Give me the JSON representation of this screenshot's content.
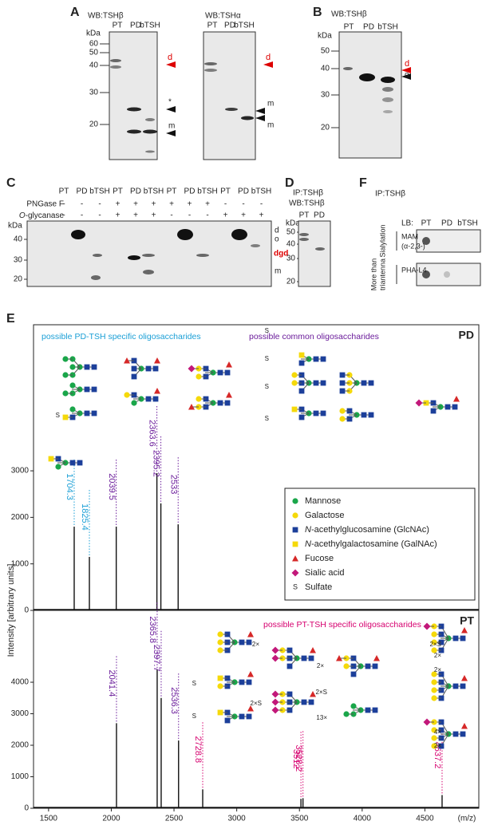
{
  "A": {
    "label": "A",
    "blots": [
      {
        "title": "WB:TSHβ",
        "lanes": [
          "PT",
          "PD",
          "bTSH"
        ],
        "unit": "kDa",
        "markers": [
          60,
          50,
          40,
          30,
          20
        ],
        "annotations": [
          "d",
          "*",
          "m"
        ]
      },
      {
        "title": "WB:TSHα",
        "lanes": [
          "PT",
          "PD",
          "bTSH"
        ],
        "annotations": [
          "d",
          "m",
          "m"
        ]
      }
    ]
  },
  "B": {
    "label": "B",
    "title": "WB:TSHβ",
    "lanes": [
      "PT",
      "PD",
      "bTSH"
    ],
    "unit": "kDa",
    "markers": [
      50,
      40,
      30,
      20
    ],
    "annotations": [
      "d",
      "o"
    ]
  },
  "C": {
    "label": "C",
    "lanes": [
      "PT",
      "PD",
      "bTSH",
      "PT",
      "PD",
      "bTSH",
      "PT",
      "PD",
      "bTSH",
      "PT",
      "PD",
      "bTSH"
    ],
    "treatments": [
      {
        "name": "PNGase F",
        "marks": [
          "-",
          "-",
          "-",
          "+",
          "+",
          "+",
          "+",
          "+",
          "+",
          "-",
          "-",
          "-"
        ]
      },
      {
        "prefix": "O",
        "name": "-glycanase",
        "marks": [
          "-",
          "-",
          "-",
          "+",
          "+",
          "+",
          "-",
          "-",
          "-",
          "+",
          "+",
          "+"
        ]
      }
    ],
    "unit": "kDa",
    "markers": [
      40,
      30,
      20
    ],
    "annotations": [
      "d",
      "o",
      "dgd",
      "m"
    ]
  },
  "D": {
    "label": "D",
    "titles": [
      "IP:TSHβ",
      "WB:TSHβ"
    ],
    "lanes": [
      "PT",
      "PD"
    ],
    "unit": "kDa",
    "markers": [
      50,
      40,
      30,
      20
    ]
  },
  "F": {
    "label": "F",
    "title": "IP:TSHβ",
    "lb": "LB:",
    "lanes": [
      "PT",
      "PD",
      "bTSH"
    ],
    "rows": [
      {
        "lines": [
          "MAM",
          "(α-2,3-)"
        ],
        "side": [
          "Sialylation"
        ]
      },
      {
        "lines": [
          "PHA-L4"
        ],
        "side": [
          "More than",
          "triantenna"
        ]
      }
    ]
  },
  "E": {
    "label": "E",
    "headers": {
      "pd": "possible PD-TSH specific oligosaccharides",
      "common": "possible common oligosaccharides",
      "pt": "possible PT-TSH specific oligosaccharides"
    },
    "y_label": "Intensity [arbitrary units]",
    "x_unit": "(m/z)",
    "xlim": [
      1380,
      4930
    ],
    "xticks": [
      1500,
      2000,
      2500,
      3000,
      3500,
      4000,
      4500
    ],
    "spectra": [
      {
        "name": "PD",
        "ylim": [
          0,
          6140
        ],
        "yticks": [
          0,
          1000,
          2000,
          3000
        ],
        "peaks": [
          {
            "mz": 1704.3,
            "intensity": 1800,
            "color": "#1a9fd6"
          },
          {
            "mz": 1825.4,
            "intensity": 1150,
            "color": "#1a9fd6"
          },
          {
            "mz": 2039.5,
            "intensity": 1800,
            "color": "#6a1b9a"
          },
          {
            "mz": 2363.6,
            "intensity": 2950,
            "color": "#6a1b9a"
          },
          {
            "mz": 2395.2,
            "intensity": 2300,
            "color": "#6a1b9a"
          },
          {
            "mz": 2533.0,
            "intensity": 1850,
            "color": "#6a1b9a"
          }
        ]
      },
      {
        "name": "PT",
        "ylim": [
          0,
          6280
        ],
        "yticks": [
          0,
          1000,
          2000,
          3000,
          4000
        ],
        "peaks": [
          {
            "mz": 2041.4,
            "intensity": 2700,
            "color": "#6a1b9a"
          },
          {
            "mz": 2365.8,
            "intensity": 4400,
            "color": "#6a1b9a"
          },
          {
            "mz": 2397.7,
            "intensity": 3500,
            "color": "#6a1b9a"
          },
          {
            "mz": 2536.3,
            "intensity": 2150,
            "color": "#6a1b9a"
          },
          {
            "mz": 2728.8,
            "intensity": 600,
            "color": "#d6006f"
          },
          {
            "mz": 3512.0,
            "intensity": 300,
            "color": "#d6006f"
          },
          {
            "mz": 3528.2,
            "intensity": 320,
            "color": "#d6006f"
          },
          {
            "mz": 4637.2,
            "intensity": 420,
            "color": "#d6006f"
          }
        ]
      }
    ],
    "legend": [
      {
        "symbol": "circle",
        "color": "#1aa64a",
        "text": "Mannose"
      },
      {
        "symbol": "circle",
        "color": "#f5d90a",
        "text": "Galactose"
      },
      {
        "symbol": "square",
        "color": "#1c3f9a",
        "prefix": "N",
        "text": "-acethylglucosamine (GlcNAc)"
      },
      {
        "symbol": "square",
        "color": "#f5d90a",
        "prefix": "N",
        "text": "-acethylgalactosamine (GalNAc)"
      },
      {
        "symbol": "triangle",
        "color": "#d62828",
        "text": "Fucose"
      },
      {
        "symbol": "diamond",
        "color": "#c2187a",
        "text": "Sialic acid"
      },
      {
        "symbol": "letter",
        "letter": "S",
        "text": "Sulfate"
      }
    ],
    "notes": [
      "S",
      "S",
      "S",
      "S",
      "S",
      "S",
      "S",
      "2×",
      "2×S",
      "2×",
      "2×S",
      "13×",
      "2×S",
      "2×",
      "2×",
      "4×",
      "2×"
    ]
  }
}
